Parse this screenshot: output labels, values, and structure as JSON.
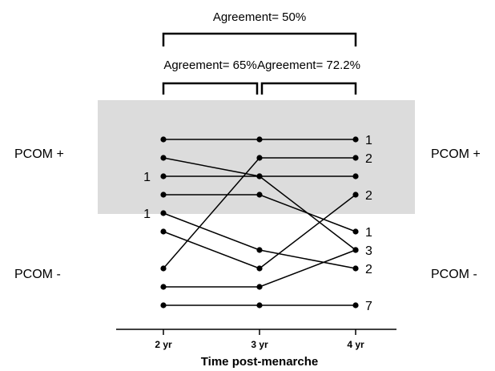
{
  "chart_data": {
    "type": "line",
    "xlabel": "Time post-menarche",
    "categories": [
      "2 yr",
      "3 yr",
      "4 yr"
    ],
    "band_label_top": "PCOM +",
    "band_label_bottom": "PCOM -",
    "agreements": [
      {
        "label": "Agreement= 65%",
        "from": "2 yr",
        "to": "3 yr"
      },
      {
        "label": "Agreement= 72.2%",
        "from": "3 yr",
        "to": "4 yr"
      },
      {
        "label": "Agreement= 50%",
        "from": "2 yr",
        "to": "4 yr"
      }
    ],
    "series": [
      {
        "values": [
          1,
          1,
          1
        ]
      },
      {
        "values": [
          2,
          3,
          7
        ]
      },
      {
        "values": [
          3,
          3,
          3
        ]
      },
      {
        "values": [
          4,
          4,
          6
        ]
      },
      {
        "values": [
          5,
          7,
          8
        ]
      },
      {
        "values": [
          6,
          8,
          4
        ]
      },
      {
        "values": [
          8,
          2,
          2
        ]
      },
      {
        "values": [
          9,
          9,
          7
        ]
      },
      {
        "values": [
          10,
          10,
          10
        ]
      }
    ],
    "left_counts": [
      {
        "text": "1",
        "rank": 3
      },
      {
        "text": "1",
        "rank": 5
      }
    ],
    "right_counts": [
      {
        "text": "1",
        "rank": 1
      },
      {
        "text": "2",
        "rank": 2
      },
      {
        "text": "2",
        "rank": 4
      },
      {
        "text": "1",
        "rank": 6
      },
      {
        "text": "3",
        "rank": 7
      },
      {
        "text": "2",
        "rank": 8
      },
      {
        "text": "7",
        "rank": 10
      }
    ]
  }
}
